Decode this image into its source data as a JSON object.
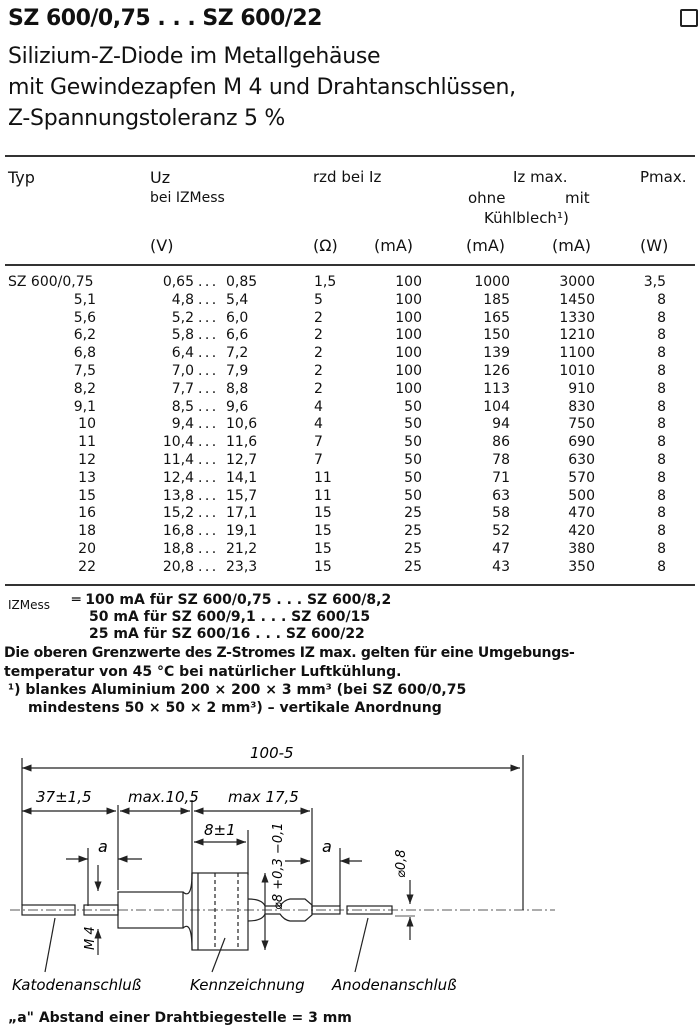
{
  "header": {
    "title": "SZ 600/0,75 . . . SZ 600/22",
    "subtitle_lines": [
      "Silizium-Z-Diode im Metallgehäuse",
      "mit Gewindezapfen M 4 und Drahtanschlüssen,",
      "Z-Spannungstoleranz 5 %"
    ]
  },
  "table": {
    "col_typ": "Typ",
    "col_uz": "Uz",
    "col_uz_sub": "bei IZMess",
    "col_rzd": "rzd bei Iz",
    "col_izmax": "Iz max.",
    "col_ohne": "ohne",
    "col_mit": "mit",
    "col_kuehlblech": "Kühlblech¹)",
    "col_pmax": "Pmax.",
    "units": [
      "(V)",
      "(Ω)",
      "(mA)",
      "(mA)",
      "(mA)",
      "(W)"
    ],
    "rows": [
      {
        "typ": "SZ 600/0,75",
        "uz_min": "0,65",
        "uz_max": "0,85",
        "rzd": "1,5",
        "iz": "100",
        "ohne": "1000",
        "mit": "3000",
        "pmax": "3,5"
      },
      {
        "typ": "5,1",
        "uz_min": "4,8",
        "uz_max": "5,4",
        "rzd": "5",
        "iz": "100",
        "ohne": "185",
        "mit": "1450",
        "pmax": "8"
      },
      {
        "typ": "5,6",
        "uz_min": "5,2",
        "uz_max": "6,0",
        "rzd": "2",
        "iz": "100",
        "ohne": "165",
        "mit": "1330",
        "pmax": "8"
      },
      {
        "typ": "6,2",
        "uz_min": "5,8",
        "uz_max": "6,6",
        "rzd": "2",
        "iz": "100",
        "ohne": "150",
        "mit": "1210",
        "pmax": "8"
      },
      {
        "typ": "6,8",
        "uz_min": "6,4",
        "uz_max": "7,2",
        "rzd": "2",
        "iz": "100",
        "ohne": "139",
        "mit": "1100",
        "pmax": "8"
      },
      {
        "typ": "7,5",
        "uz_min": "7,0",
        "uz_max": "7,9",
        "rzd": "2",
        "iz": "100",
        "ohne": "126",
        "mit": "1010",
        "pmax": "8"
      },
      {
        "typ": "8,2",
        "uz_min": "7,7",
        "uz_max": "8,8",
        "rzd": "2",
        "iz": "100",
        "ohne": "113",
        "mit": "910",
        "pmax": "8"
      },
      {
        "typ": "9,1",
        "uz_min": "8,5",
        "uz_max": "9,6",
        "rzd": "4",
        "iz": "50",
        "ohne": "104",
        "mit": "830",
        "pmax": "8"
      },
      {
        "typ": "10",
        "uz_min": "9,4",
        "uz_max": "10,6",
        "rzd": "4",
        "iz": "50",
        "ohne": "94",
        "mit": "750",
        "pmax": "8"
      },
      {
        "typ": "11",
        "uz_min": "10,4",
        "uz_max": "11,6",
        "rzd": "7",
        "iz": "50",
        "ohne": "86",
        "mit": "690",
        "pmax": "8"
      },
      {
        "typ": "12",
        "uz_min": "11,4",
        "uz_max": "12,7",
        "rzd": "7",
        "iz": "50",
        "ohne": "78",
        "mit": "630",
        "pmax": "8"
      },
      {
        "typ": "13",
        "uz_min": "12,4",
        "uz_max": "14,1",
        "rzd": "11",
        "iz": "50",
        "ohne": "71",
        "mit": "570",
        "pmax": "8"
      },
      {
        "typ": "15",
        "uz_min": "13,8",
        "uz_max": "15,7",
        "rzd": "11",
        "iz": "50",
        "ohne": "63",
        "mit": "500",
        "pmax": "8"
      },
      {
        "typ": "16",
        "uz_min": "15,2",
        "uz_max": "17,1",
        "rzd": "15",
        "iz": "25",
        "ohne": "58",
        "mit": "470",
        "pmax": "8"
      },
      {
        "typ": "18",
        "uz_min": "16,8",
        "uz_max": "19,1",
        "rzd": "15",
        "iz": "25",
        "ohne": "52",
        "mit": "420",
        "pmax": "8"
      },
      {
        "typ": "20",
        "uz_min": "18,8",
        "uz_max": "21,2",
        "rzd": "15",
        "iz": "25",
        "ohne": "47",
        "mit": "380",
        "pmax": "8"
      },
      {
        "typ": "22",
        "uz_min": "20,8",
        "uz_max": "23,3",
        "rzd": "15",
        "iz": "25",
        "ohne": "43",
        "mit": "350",
        "pmax": "8"
      }
    ]
  },
  "notes": {
    "izmess_label": "IZMess",
    "izmess_lines": [
      "═ 100 mA für SZ 600/0,75 . . . SZ 600/8,2",
      "50 mA für SZ 600/9,1   . . . SZ 600/15",
      "25 mA für SZ 600/16    . . . SZ 600/22"
    ],
    "limit_line1": "Die oberen Grenzwerte des Z-Stromes IZ max. gelten für eine Umgebungs-",
    "limit_line2": "temperatur von 45 °C bei natürlicher Luftkühlung.",
    "footnote_line1": "¹)  blankes Aluminium 200 × 200 × 3 mm³ (bei SZ 600/0,75",
    "footnote_line2": "mindestens 50 × 50 × 2 mm³) – vertikale Anordnung"
  },
  "drawing": {
    "dim_total": "100-5",
    "dim_wire": "37±1,5",
    "dim_thread": "max.10,5",
    "dim_body": "max 17,5",
    "dim_head": "8±1",
    "dim_a": "a",
    "dim_diameter": "⌀8 +0,3 −0,1",
    "dim_thread_size": "M 4",
    "dim_wire_diameter": "⌀0,8",
    "label_cathode": "Katodenanschluß",
    "label_marking": "Kennzeichnung",
    "label_anode": "Anodenanschluß",
    "footer": "„a\" Abstand einer Drahtbiegestelle = 3 mm"
  }
}
